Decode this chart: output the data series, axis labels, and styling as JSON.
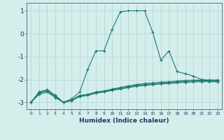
{
  "title": "",
  "xlabel": "Humidex (Indice chaleur)",
  "background_color": "#d4eeec",
  "grid_color": "#b8d8d6",
  "line_color": "#1a7a6e",
  "x_min": -0.5,
  "x_max": 23.5,
  "y_min": -3.3,
  "y_max": 1.35,
  "yticks": [
    -3,
    -2,
    -1,
    0,
    1
  ],
  "xticks": [
    0,
    1,
    2,
    3,
    4,
    5,
    6,
    7,
    8,
    9,
    10,
    11,
    12,
    13,
    14,
    15,
    16,
    17,
    18,
    19,
    20,
    21,
    22,
    23
  ],
  "series": [
    [
      0,
      -3.0
    ],
    [
      1,
      -2.55
    ],
    [
      2,
      -2.45
    ],
    [
      3,
      -2.7
    ],
    [
      4,
      -3.0
    ],
    [
      5,
      -2.85
    ],
    [
      6,
      -2.55
    ],
    [
      7,
      -1.55
    ],
    [
      8,
      -0.75
    ],
    [
      9,
      -0.75
    ],
    [
      10,
      0.2
    ],
    [
      11,
      0.95
    ],
    [
      12,
      1.0
    ],
    [
      13,
      1.0
    ],
    [
      14,
      1.0
    ],
    [
      15,
      0.05
    ],
    [
      16,
      -1.15
    ],
    [
      17,
      -0.75
    ],
    [
      18,
      -1.65
    ],
    [
      19,
      -1.75
    ],
    [
      20,
      -1.85
    ],
    [
      21,
      -2.0
    ],
    [
      22,
      -2.05
    ],
    [
      23,
      -2.1
    ]
  ],
  "series2": [
    [
      0,
      -3.0
    ],
    [
      1,
      -2.55
    ],
    [
      2,
      -2.45
    ],
    [
      3,
      -2.7
    ],
    [
      4,
      -3.0
    ],
    [
      5,
      -2.9
    ],
    [
      6,
      -2.7
    ],
    [
      7,
      -2.65
    ],
    [
      8,
      -2.55
    ],
    [
      9,
      -2.5
    ],
    [
      10,
      -2.42
    ],
    [
      11,
      -2.35
    ],
    [
      12,
      -2.28
    ],
    [
      13,
      -2.22
    ],
    [
      14,
      -2.18
    ],
    [
      15,
      -2.15
    ],
    [
      16,
      -2.12
    ],
    [
      17,
      -2.1
    ],
    [
      18,
      -2.07
    ],
    [
      19,
      -2.05
    ],
    [
      20,
      -2.03
    ],
    [
      21,
      -2.02
    ],
    [
      22,
      -2.02
    ],
    [
      23,
      -2.02
    ]
  ],
  "series3": [
    [
      0,
      -3.0
    ],
    [
      1,
      -2.6
    ],
    [
      2,
      -2.5
    ],
    [
      3,
      -2.75
    ],
    [
      4,
      -3.0
    ],
    [
      5,
      -2.92
    ],
    [
      6,
      -2.72
    ],
    [
      7,
      -2.67
    ],
    [
      8,
      -2.57
    ],
    [
      9,
      -2.52
    ],
    [
      10,
      -2.45
    ],
    [
      11,
      -2.38
    ],
    [
      12,
      -2.32
    ],
    [
      13,
      -2.26
    ],
    [
      14,
      -2.22
    ],
    [
      15,
      -2.19
    ],
    [
      16,
      -2.16
    ],
    [
      17,
      -2.14
    ],
    [
      18,
      -2.11
    ],
    [
      19,
      -2.09
    ],
    [
      20,
      -2.07
    ],
    [
      21,
      -2.06
    ],
    [
      22,
      -2.06
    ],
    [
      23,
      -2.06
    ]
  ],
  "series4": [
    [
      0,
      -3.0
    ],
    [
      1,
      -2.65
    ],
    [
      2,
      -2.55
    ],
    [
      3,
      -2.8
    ],
    [
      4,
      -3.0
    ],
    [
      5,
      -2.93
    ],
    [
      6,
      -2.75
    ],
    [
      7,
      -2.7
    ],
    [
      8,
      -2.6
    ],
    [
      9,
      -2.55
    ],
    [
      10,
      -2.48
    ],
    [
      11,
      -2.42
    ],
    [
      12,
      -2.36
    ],
    [
      13,
      -2.3
    ],
    [
      14,
      -2.26
    ],
    [
      15,
      -2.23
    ],
    [
      16,
      -2.2
    ],
    [
      17,
      -2.18
    ],
    [
      18,
      -2.15
    ],
    [
      19,
      -2.13
    ],
    [
      20,
      -2.11
    ],
    [
      21,
      -2.1
    ],
    [
      22,
      -2.1
    ],
    [
      23,
      -2.1
    ]
  ]
}
